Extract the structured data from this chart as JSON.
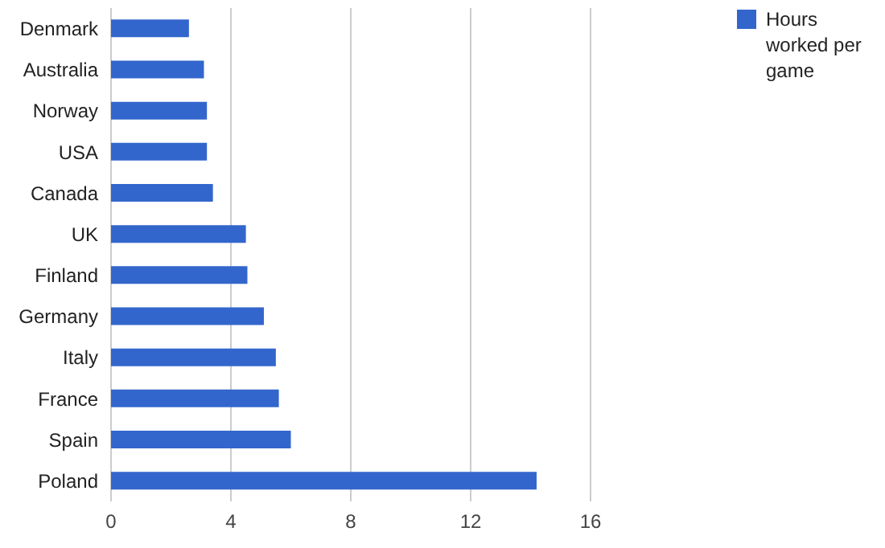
{
  "chart_data": {
    "type": "bar",
    "orientation": "horizontal",
    "categories": [
      "Denmark",
      "Australia",
      "Norway",
      "USA",
      "Canada",
      "UK",
      "Finland",
      "Germany",
      "Italy",
      "France",
      "Spain",
      "Poland"
    ],
    "series": [
      {
        "name": "Hours worked per game",
        "color": "#3366cc",
        "values": [
          2.6,
          3.1,
          3.2,
          3.2,
          3.4,
          4.5,
          4.55,
          5.1,
          5.5,
          5.6,
          6.0,
          14.2
        ]
      }
    ],
    "xlim": [
      0,
      16
    ],
    "xticks": [
      0,
      4,
      8,
      12,
      16
    ],
    "grid": "x",
    "legend": "top right"
  }
}
